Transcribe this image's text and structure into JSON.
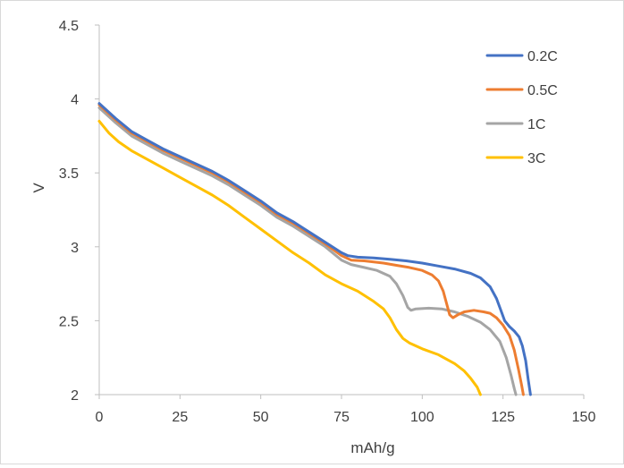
{
  "chart_data": {
    "type": "line",
    "title": "",
    "xlabel": "mAh/g",
    "ylabel": "V",
    "xlim": [
      0,
      150
    ],
    "ylim": [
      2,
      4.5
    ],
    "x_ticks": [
      0,
      25,
      50,
      75,
      100,
      125,
      150
    ],
    "y_ticks": [
      2,
      2.5,
      3,
      3.5,
      4,
      4.5
    ],
    "x_tick_labels": [
      "0",
      "25",
      "50",
      "75",
      "100",
      "125",
      "150"
    ],
    "y_tick_labels": [
      "2",
      "2.5",
      "3",
      "3.5",
      "4",
      "4.5"
    ],
    "grid": false,
    "legend_position": "top-right",
    "series": [
      {
        "name": "0.2C",
        "color": "#4472C4",
        "points": [
          [
            0,
            3.97
          ],
          [
            5,
            3.87
          ],
          [
            10,
            3.78
          ],
          [
            15,
            3.72
          ],
          [
            20,
            3.66
          ],
          [
            25,
            3.61
          ],
          [
            30,
            3.56
          ],
          [
            35,
            3.51
          ],
          [
            40,
            3.45
          ],
          [
            45,
            3.38
          ],
          [
            50,
            3.31
          ],
          [
            55,
            3.23
          ],
          [
            60,
            3.17
          ],
          [
            65,
            3.1
          ],
          [
            70,
            3.03
          ],
          [
            75,
            2.96
          ],
          [
            77,
            2.94
          ],
          [
            80,
            2.93
          ],
          [
            85,
            2.925
          ],
          [
            90,
            2.915
          ],
          [
            95,
            2.905
          ],
          [
            100,
            2.89
          ],
          [
            105,
            2.87
          ],
          [
            110,
            2.85
          ],
          [
            115,
            2.82
          ],
          [
            118,
            2.79
          ],
          [
            121,
            2.73
          ],
          [
            123,
            2.65
          ],
          [
            124.5,
            2.56
          ],
          [
            125.5,
            2.5
          ],
          [
            127,
            2.46
          ],
          [
            128.5,
            2.43
          ],
          [
            130,
            2.39
          ],
          [
            131,
            2.33
          ],
          [
            132,
            2.23
          ],
          [
            132.8,
            2.1
          ],
          [
            133.5,
            2.0
          ]
        ]
      },
      {
        "name": "0.5C",
        "color": "#ED7D31",
        "points": [
          [
            0,
            3.96
          ],
          [
            5,
            3.86
          ],
          [
            10,
            3.77
          ],
          [
            15,
            3.71
          ],
          [
            20,
            3.65
          ],
          [
            25,
            3.6
          ],
          [
            30,
            3.55
          ],
          [
            35,
            3.5
          ],
          [
            40,
            3.44
          ],
          [
            45,
            3.37
          ],
          [
            50,
            3.3
          ],
          [
            55,
            3.22
          ],
          [
            60,
            3.16
          ],
          [
            65,
            3.09
          ],
          [
            70,
            3.02
          ],
          [
            75,
            2.94
          ],
          [
            78,
            2.91
          ],
          [
            82,
            2.905
          ],
          [
            88,
            2.89
          ],
          [
            92,
            2.875
          ],
          [
            96,
            2.86
          ],
          [
            100,
            2.84
          ],
          [
            103,
            2.81
          ],
          [
            105,
            2.77
          ],
          [
            106.5,
            2.7
          ],
          [
            107.5,
            2.62
          ],
          [
            108.5,
            2.54
          ],
          [
            109.5,
            2.52
          ],
          [
            111,
            2.54
          ],
          [
            113,
            2.56
          ],
          [
            116,
            2.57
          ],
          [
            119,
            2.56
          ],
          [
            121,
            2.55
          ],
          [
            123,
            2.52
          ],
          [
            125,
            2.47
          ],
          [
            127,
            2.4
          ],
          [
            128.5,
            2.3
          ],
          [
            129.8,
            2.17
          ],
          [
            130.8,
            2.06
          ],
          [
            131.3,
            2.0
          ]
        ]
      },
      {
        "name": "1C",
        "color": "#A5A5A5",
        "points": [
          [
            0,
            3.94
          ],
          [
            5,
            3.84
          ],
          [
            10,
            3.75
          ],
          [
            15,
            3.69
          ],
          [
            20,
            3.63
          ],
          [
            25,
            3.58
          ],
          [
            30,
            3.53
          ],
          [
            35,
            3.48
          ],
          [
            40,
            3.42
          ],
          [
            45,
            3.35
          ],
          [
            50,
            3.28
          ],
          [
            55,
            3.2
          ],
          [
            60,
            3.14
          ],
          [
            65,
            3.07
          ],
          [
            70,
            3.0
          ],
          [
            75,
            2.91
          ],
          [
            78,
            2.88
          ],
          [
            82,
            2.86
          ],
          [
            86,
            2.84
          ],
          [
            90,
            2.8
          ],
          [
            92,
            2.75
          ],
          [
            94,
            2.67
          ],
          [
            95.5,
            2.59
          ],
          [
            96.5,
            2.57
          ],
          [
            98,
            2.58
          ],
          [
            102,
            2.585
          ],
          [
            106,
            2.58
          ],
          [
            110,
            2.56
          ],
          [
            114,
            2.53
          ],
          [
            118,
            2.49
          ],
          [
            121,
            2.44
          ],
          [
            124,
            2.36
          ],
          [
            126,
            2.25
          ],
          [
            127.5,
            2.13
          ],
          [
            128.5,
            2.04
          ],
          [
            129,
            2.0
          ]
        ]
      },
      {
        "name": "3C",
        "color": "#FFC000",
        "points": [
          [
            0,
            3.85
          ],
          [
            3,
            3.77
          ],
          [
            6,
            3.71
          ],
          [
            10,
            3.65
          ],
          [
            15,
            3.59
          ],
          [
            20,
            3.53
          ],
          [
            25,
            3.47
          ],
          [
            30,
            3.41
          ],
          [
            35,
            3.35
          ],
          [
            40,
            3.28
          ],
          [
            45,
            3.2
          ],
          [
            50,
            3.12
          ],
          [
            55,
            3.04
          ],
          [
            60,
            2.96
          ],
          [
            65,
            2.89
          ],
          [
            70,
            2.81
          ],
          [
            75,
            2.75
          ],
          [
            80,
            2.7
          ],
          [
            85,
            2.63
          ],
          [
            88,
            2.58
          ],
          [
            90,
            2.52
          ],
          [
            92,
            2.44
          ],
          [
            94,
            2.38
          ],
          [
            96,
            2.35
          ],
          [
            100,
            2.31
          ],
          [
            105,
            2.27
          ],
          [
            110,
            2.21
          ],
          [
            113,
            2.16
          ],
          [
            115,
            2.11
          ],
          [
            117,
            2.05
          ],
          [
            118,
            2.0
          ]
        ]
      }
    ]
  }
}
